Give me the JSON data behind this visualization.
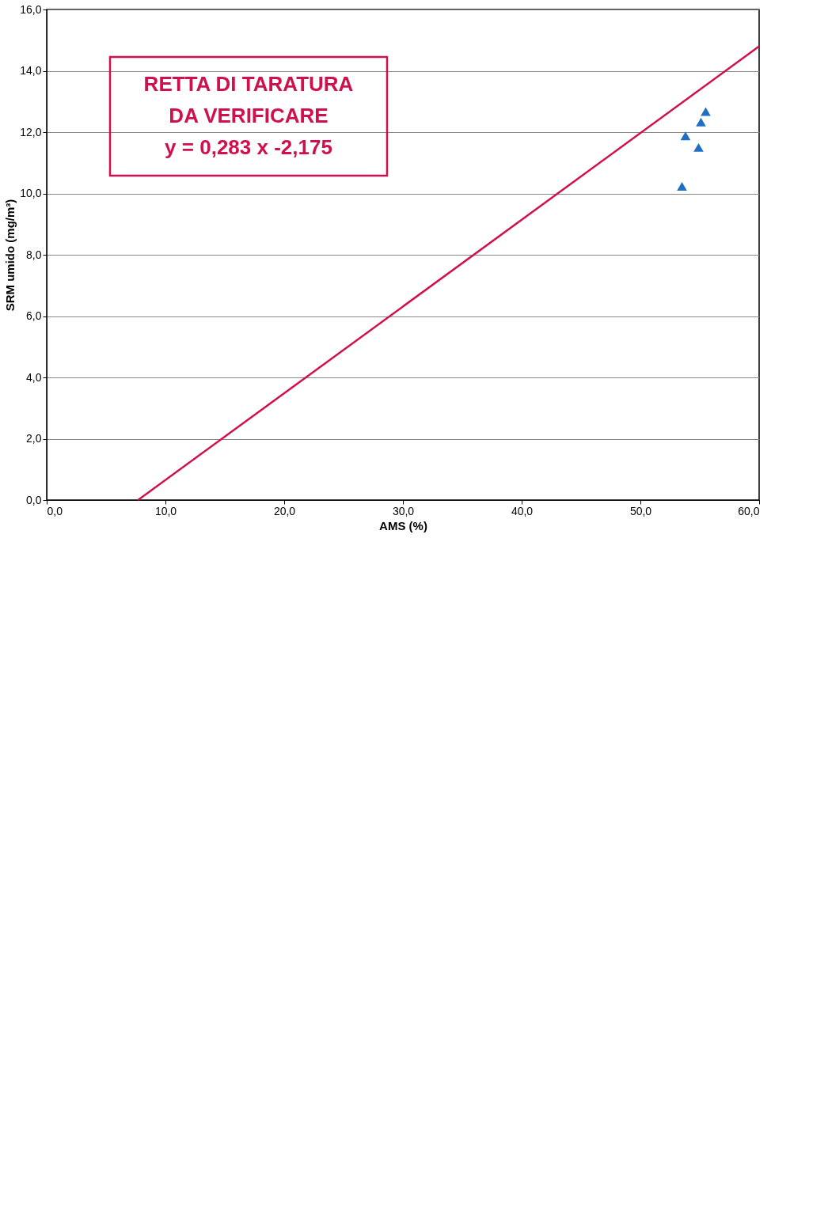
{
  "chart_data": {
    "type": "scatter",
    "xlabel": "AMS (%)",
    "ylabel": "SRM umido (mg/m³)",
    "xlim": [
      0,
      60
    ],
    "xticks": [
      {
        "value": 0,
        "label": "0,0"
      },
      {
        "value": 10,
        "label": "10,0"
      },
      {
        "value": 20,
        "label": "20,0"
      },
      {
        "value": 30,
        "label": "30,0"
      },
      {
        "value": 40,
        "label": "40,0"
      },
      {
        "value": 50,
        "label": "50,0"
      },
      {
        "value": 60,
        "label": "60,0"
      }
    ],
    "ylim": [
      0,
      16
    ],
    "yticks": [
      {
        "value": 0,
        "label": "0,0"
      },
      {
        "value": 2,
        "label": "2,0"
      },
      {
        "value": 4,
        "label": "4,0"
      },
      {
        "value": 6,
        "label": "6,0"
      },
      {
        "value": 8,
        "label": "8,0"
      },
      {
        "value": 10,
        "label": "10,0"
      },
      {
        "value": 12,
        "label": "12,0"
      },
      {
        "value": 14,
        "label": "14,0"
      },
      {
        "value": 16,
        "label": "16,0"
      }
    ],
    "grid": "y",
    "series": [
      {
        "color": "#1f6fc5",
        "marker": "triangle",
        "x": [
          55.5,
          55.1,
          54.9,
          53.8,
          53.5
        ],
        "values": [
          12.67,
          12.33,
          11.5,
          11.88,
          10.23
        ]
      },
      {
        "type": "line",
        "color": "#d0104c",
        "x": [
          7.69,
          60
        ],
        "values": [
          0,
          14.8
        ]
      }
    ],
    "annotations": [
      "RETTA DI TARATURA",
      "DA VERIFICARE",
      "y = 0,283 x -2,175"
    ]
  }
}
